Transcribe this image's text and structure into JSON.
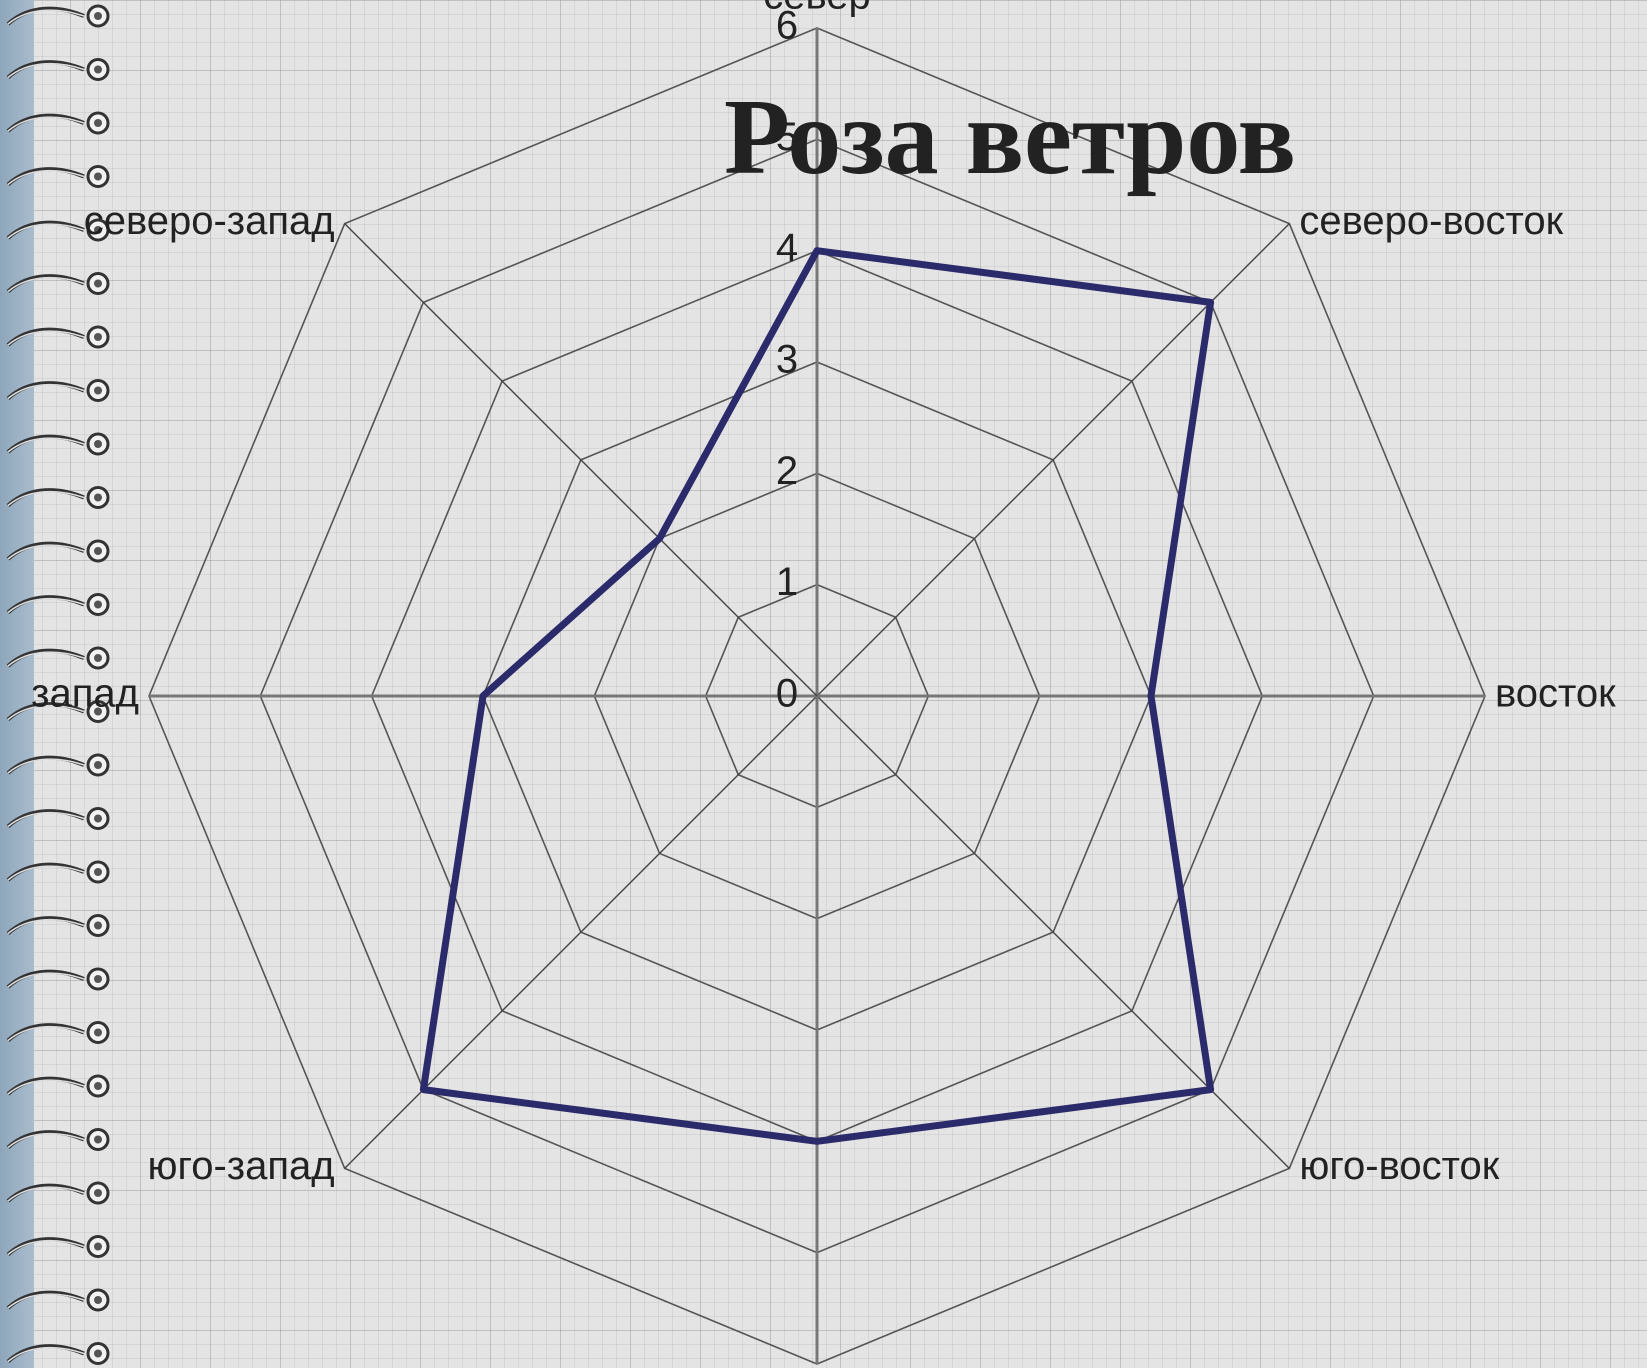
{
  "chart_data": {
    "type": "radar",
    "title": "Роза ветров",
    "categories": [
      "север",
      "северо-восток",
      "восток",
      "юго-восток",
      null,
      "юго-запад",
      "запад",
      "северо-запад"
    ],
    "values": [
      4,
      5,
      3,
      5,
      4,
      5,
      3,
      2
    ],
    "color": "#2b2a6b",
    "ylim": [
      0,
      6
    ],
    "yticks": [
      0,
      1,
      2,
      3,
      4,
      5,
      6
    ],
    "grid": true
  }
}
